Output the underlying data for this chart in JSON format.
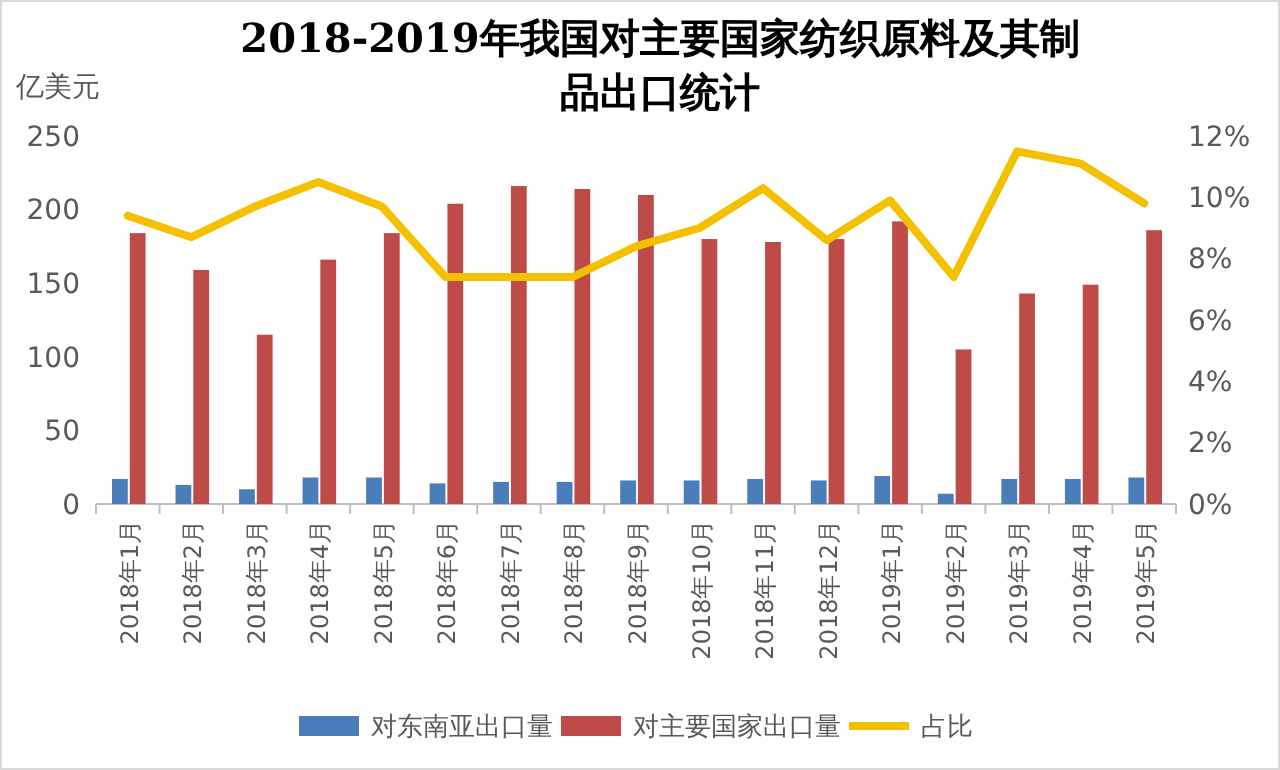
{
  "chart_data": {
    "type": "bar",
    "title": "2018-2019年我国对主要国家纺织原料及其制品出口统计",
    "ylabel": "亿美元",
    "categories": [
      "2018年1月",
      "2018年2月",
      "2018年3月",
      "2018年4月",
      "2018年5月",
      "2018年6月",
      "2018年7月",
      "2018年8月",
      "2018年9月",
      "2018年10月",
      "2018年11月",
      "2018年12月",
      "2019年1月",
      "2019年2月",
      "2019年3月",
      "2019年4月",
      "2019年5月"
    ],
    "series": [
      {
        "name": "对东南亚出口量",
        "color": "#4a7ebb",
        "values": [
          17,
          13,
          10,
          18,
          18,
          14,
          15,
          15,
          16,
          16,
          17,
          16,
          19,
          7,
          17,
          17,
          18
        ]
      },
      {
        "name": "对主要国家出口量",
        "color": "#be4b48",
        "values": [
          184,
          159,
          115,
          166,
          184,
          204,
          216,
          214,
          210,
          180,
          178,
          180,
          192,
          105,
          143,
          149,
          186
        ]
      },
      {
        "name": "占比",
        "type": "line",
        "axis": "y2",
        "color": "#f5c000",
        "marker": "none",
        "values": [
          9.4,
          8.7,
          9.7,
          10.5,
          9.7,
          7.4,
          7.4,
          7.4,
          8.4,
          9.0,
          10.3,
          8.6,
          9.9,
          7.4,
          11.5,
          11.1,
          9.8
        ]
      }
    ],
    "ylim": [
      0,
      250
    ],
    "yticks": [
      0,
      50,
      100,
      150,
      200,
      250
    ],
    "y2lim": [
      0,
      12
    ],
    "y2ticks": [
      {
        "value": 0,
        "label": "0%"
      },
      {
        "value": 2,
        "label": "2%"
      },
      {
        "value": 4,
        "label": "4%"
      },
      {
        "value": 6,
        "label": "6%"
      },
      {
        "value": 8,
        "label": "8%"
      },
      {
        "value": 10,
        "label": "10%"
      },
      {
        "value": 12,
        "label": "12%"
      }
    ],
    "grid": false,
    "legend": "bottom"
  }
}
